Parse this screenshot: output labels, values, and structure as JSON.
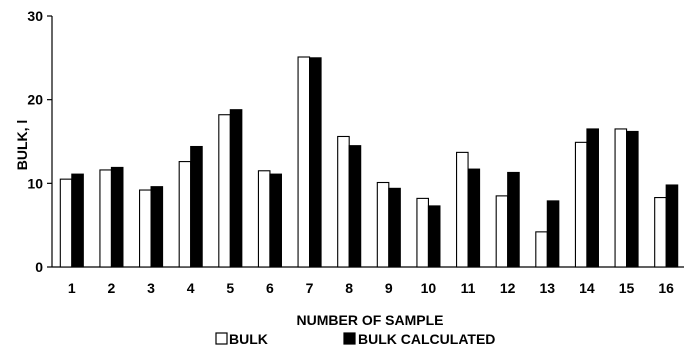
{
  "chart_data": {
    "type": "bar",
    "title": "",
    "xlabel": "NUMBER OF SAMPLE",
    "ylabel": "BULK, l",
    "ylim": [
      0,
      30
    ],
    "yticks": [
      0,
      10,
      20,
      30
    ],
    "grid": false,
    "legend_position": "bottom",
    "categories": [
      "1",
      "2",
      "3",
      "4",
      "5",
      "6",
      "7",
      "8",
      "9",
      "10",
      "11",
      "12",
      "13",
      "14",
      "15",
      "16"
    ],
    "series": [
      {
        "name": "BULK",
        "fill": "#ffffff",
        "values": [
          10.5,
          11.6,
          9.2,
          12.6,
          18.2,
          11.5,
          25.1,
          15.6,
          10.1,
          8.2,
          13.7,
          8.5,
          4.2,
          14.9,
          16.5,
          8.3
        ]
      },
      {
        "name": "BULK CALCULATED",
        "fill": "#000000",
        "values": [
          11.1,
          11.9,
          9.6,
          14.4,
          18.8,
          11.1,
          25.0,
          14.5,
          9.4,
          7.3,
          11.7,
          11.3,
          7.9,
          16.5,
          16.2,
          9.8
        ]
      }
    ]
  }
}
